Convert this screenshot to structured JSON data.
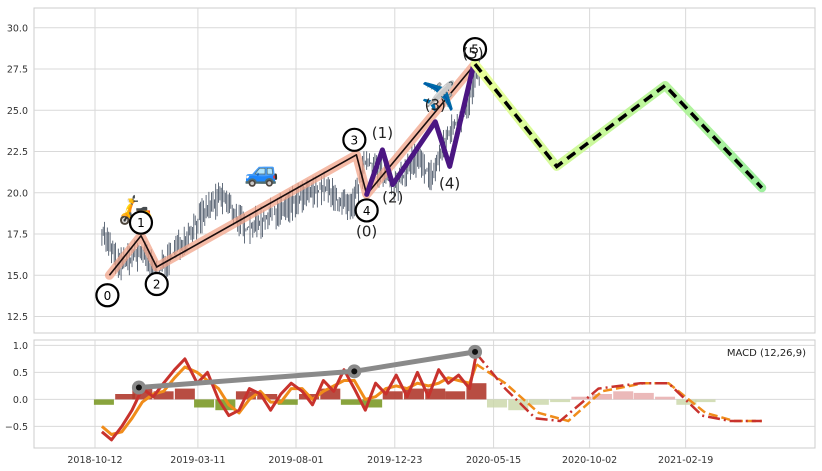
{
  "chart_data": [
    {
      "type": "line",
      "panel": "price",
      "ylim": [
        11.5,
        31.2
      ],
      "yticks": [
        "12.5",
        "15.0",
        "17.5",
        "20.0",
        "22.5",
        "25.0",
        "27.5",
        "30.0"
      ],
      "grid": true,
      "price_series": {
        "x": [
          "2018-10-22",
          "2018-11-15",
          "2018-12-20",
          "2019-01-10",
          "2019-02-20",
          "2019-03-25",
          "2019-04-15",
          "2019-05-20",
          "2019-06-25",
          "2019-08-01",
          "2019-09-10",
          "2019-10-20",
          "2019-11-12",
          "2019-12-05",
          "2019-12-25",
          "2020-01-20",
          "2020-02-15",
          "2020-03-10",
          "2020-04-05",
          "2020-04-25"
        ],
        "y": [
          17.8,
          15.6,
          16.4,
          15.0,
          17.3,
          19.0,
          19.8,
          17.8,
          18.6,
          19.5,
          20.3,
          18.9,
          22.0,
          21.2,
          20.3,
          22.1,
          21.0,
          23.5,
          25.0,
          27.6
        ]
      },
      "wave_points": {
        "labels": [
          "0",
          "1",
          "2",
          "3",
          "4",
          "5"
        ],
        "x": [
          "2018-11-02",
          "2018-12-18",
          "2019-01-10",
          "2019-10-28",
          "2019-11-12",
          "2020-04-18"
        ],
        "y": [
          15.0,
          17.4,
          15.5,
          22.3,
          19.9,
          27.8
        ]
      },
      "subwave_points": {
        "labels": [
          "(0)",
          "(1)",
          "(2)",
          "(3)",
          "(4)",
          "(5)"
        ],
        "x": [
          "2019-11-12",
          "2019-12-05",
          "2019-12-20",
          "2020-02-20",
          "2020-03-12",
          "2020-04-15"
        ],
        "y": [
          19.9,
          22.6,
          20.5,
          24.3,
          21.6,
          27.6
        ]
      },
      "projection": {
        "x": [
          "2020-04-18",
          "2020-08-15",
          "2021-01-20",
          "2021-06-10"
        ],
        "y": [
          27.8,
          21.6,
          26.5,
          20.3
        ]
      },
      "markers": [
        {
          "icon": "scooter-icon",
          "glyph": "🛵",
          "x": "2018-12-10",
          "y": 18.4
        },
        {
          "icon": "car-icon",
          "glyph": "🚙",
          "x": "2019-06-12",
          "y": 20.7
        },
        {
          "icon": "airplane-icon",
          "glyph": "✈️",
          "x": "2020-02-25",
          "y": 25.3
        }
      ]
    },
    {
      "type": "line",
      "panel": "macd",
      "legend": "MACD (12,26,9)",
      "legend_position": "top-right",
      "ylim": [
        -0.9,
        1.1
      ],
      "yticks": [
        "−0.5",
        "0.0",
        "0.5",
        "1.0"
      ],
      "xticks": [
        "2018-10-12",
        "2019-03-11",
        "2019-08-01",
        "2019-12-23",
        "2020-05-15",
        "2020-10-02",
        "2021-02-19"
      ],
      "grid": true,
      "macd_line": {
        "x": [
          "2018-10-22",
          "2018-11-05",
          "2018-11-20",
          "2018-12-05",
          "2018-12-20",
          "2019-01-05",
          "2019-01-20",
          "2019-02-05",
          "2019-02-20",
          "2019-03-10",
          "2019-03-25",
          "2019-04-10",
          "2019-04-25",
          "2019-05-10",
          "2019-05-25",
          "2019-06-10",
          "2019-06-25",
          "2019-07-10",
          "2019-07-25",
          "2019-08-10",
          "2019-08-25",
          "2019-09-10",
          "2019-09-25",
          "2019-10-10",
          "2019-10-25",
          "2019-11-10",
          "2019-11-25",
          "2019-12-10",
          "2019-12-25",
          "2020-01-10",
          "2020-01-25",
          "2020-02-10",
          "2020-02-25",
          "2020-03-10",
          "2020-03-25",
          "2020-04-10",
          "2020-04-20"
        ],
        "y": [
          -0.6,
          -0.75,
          -0.5,
          -0.2,
          0.2,
          0.05,
          0.3,
          0.55,
          0.75,
          0.3,
          0.5,
          0.0,
          -0.3,
          -0.2,
          0.2,
          0.1,
          -0.2,
          0.1,
          0.3,
          0.15,
          -0.1,
          0.35,
          0.15,
          0.55,
          0.2,
          -0.2,
          0.3,
          0.1,
          0.45,
          0.05,
          0.5,
          0.05,
          0.55,
          0.3,
          0.45,
          0.2,
          0.85
        ]
      },
      "signal_line": {
        "x": [
          "2018-10-22",
          "2018-11-05",
          "2018-11-20",
          "2018-12-05",
          "2018-12-20",
          "2019-01-05",
          "2019-01-20",
          "2019-02-05",
          "2019-02-20",
          "2019-03-10",
          "2019-03-25",
          "2019-04-10",
          "2019-04-25",
          "2019-05-10",
          "2019-05-25",
          "2019-06-10",
          "2019-06-25",
          "2019-07-10",
          "2019-07-25",
          "2019-08-10",
          "2019-08-25",
          "2019-09-10",
          "2019-09-25",
          "2019-10-10",
          "2019-10-25",
          "2019-11-10",
          "2019-11-25",
          "2019-12-10",
          "2019-12-25",
          "2020-01-10",
          "2020-01-25",
          "2020-02-10",
          "2020-02-25",
          "2020-03-10",
          "2020-03-25",
          "2020-04-10",
          "2020-04-20"
        ],
        "y": [
          -0.5,
          -0.65,
          -0.6,
          -0.35,
          -0.05,
          0.1,
          0.15,
          0.4,
          0.6,
          0.5,
          0.35,
          0.2,
          -0.1,
          -0.25,
          0.0,
          0.15,
          -0.05,
          -0.05,
          0.2,
          0.2,
          0.0,
          0.15,
          0.25,
          0.35,
          0.35,
          0.0,
          0.05,
          0.2,
          0.25,
          0.2,
          0.3,
          0.25,
          0.3,
          0.4,
          0.35,
          0.3,
          0.65
        ]
      },
      "histogram": {
        "x": [
          "2018-10-25",
          "2018-11-25",
          "2018-12-20",
          "2019-01-20",
          "2019-02-20",
          "2019-03-20",
          "2019-04-20",
          "2019-05-20",
          "2019-06-20",
          "2019-07-20",
          "2019-08-20",
          "2019-09-20",
          "2019-10-20",
          "2019-11-20",
          "2019-12-20",
          "2020-01-20",
          "2020-02-20",
          "2020-03-20",
          "2020-04-20",
          "2020-05-20",
          "2020-06-20",
          "2020-07-20",
          "2020-08-20",
          "2020-09-20",
          "2020-10-20",
          "2020-11-20",
          "2020-12-20",
          "2021-01-20",
          "2021-02-20",
          "2021-03-20"
        ],
        "y": [
          -0.1,
          0.1,
          0.2,
          0.15,
          0.2,
          -0.15,
          -0.2,
          0.15,
          0.1,
          -0.1,
          0.1,
          0.2,
          -0.1,
          -0.15,
          0.15,
          0.2,
          0.2,
          0.15,
          0.3,
          -0.15,
          -0.2,
          -0.1,
          -0.05,
          0.05,
          0.1,
          0.15,
          0.12,
          0.05,
          -0.1,
          -0.05
        ]
      },
      "projection_macd": {
        "x": [
          "2020-04-20",
          "2020-06-01",
          "2020-07-15",
          "2020-08-20",
          "2020-10-15",
          "2020-12-15",
          "2021-01-25",
          "2021-03-15",
          "2021-04-25",
          "2021-06-10"
        ],
        "y": [
          0.85,
          0.2,
          -0.35,
          -0.4,
          0.2,
          0.3,
          0.3,
          -0.3,
          -0.4,
          -0.4
        ]
      },
      "projection_signal": {
        "x": [
          "2020-04-20",
          "2020-06-01",
          "2020-07-20",
          "2020-09-01",
          "2020-10-20",
          "2020-12-20",
          "2021-01-25",
          "2021-03-20",
          "2021-05-01",
          "2021-06-10"
        ],
        "y": [
          0.65,
          0.3,
          -0.25,
          -0.4,
          0.15,
          0.3,
          0.3,
          -0.25,
          -0.4,
          -0.4
        ]
      },
      "trend_points": {
        "x": [
          "2018-12-15",
          "2019-10-25",
          "2020-04-18"
        ],
        "y": [
          0.22,
          0.52,
          0.88
        ]
      }
    }
  ]
}
